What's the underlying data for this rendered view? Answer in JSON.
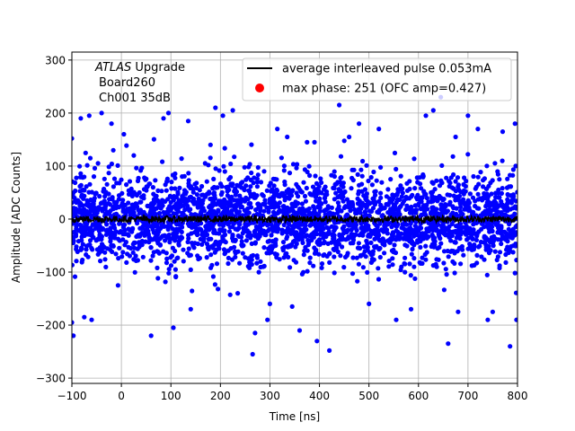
{
  "chart_data": {
    "type": "scatter",
    "title": "",
    "xlabel": "Time [ns]",
    "ylabel": "Amplitude [ADC Counts]",
    "xlim": [
      -100,
      800
    ],
    "ylim": [
      -310,
      315
    ],
    "xticks": [
      -100,
      0,
      100,
      200,
      300,
      400,
      500,
      600,
      700,
      800
    ],
    "yticks": [
      -300,
      -200,
      -100,
      0,
      100,
      200,
      300
    ],
    "xtick_labels": [
      "−100",
      "0",
      "100",
      "200",
      "300",
      "400",
      "500",
      "600",
      "700",
      "800"
    ],
    "ytick_labels": [
      "−300",
      "−200",
      "−100",
      "0",
      "100",
      "200",
      "300"
    ],
    "grid": true,
    "legend_position": "top-right",
    "annotation": {
      "italic": "ATLAS",
      "rest": " Upgrade",
      "line2": "Board260",
      "line3": "Ch001 35dB"
    },
    "series": [
      {
        "name": "",
        "kind": "scatter",
        "color": "#0000ff",
        "description_note": "dense noise band, approx ±90 ADC core with outliers",
        "core_range": [
          -90,
          90
        ],
        "outliers": [
          [
            -100,
            152
          ],
          [
            -100,
            -195
          ],
          [
            -97,
            -220
          ],
          [
            -82,
            190
          ],
          [
            -65,
            195
          ],
          [
            -40,
            200
          ],
          [
            -75,
            -185
          ],
          [
            -60,
            -190
          ],
          [
            -20,
            180
          ],
          [
            5,
            160
          ],
          [
            25,
            120
          ],
          [
            60,
            -220
          ],
          [
            85,
            190
          ],
          [
            95,
            200
          ],
          [
            105,
            -205
          ],
          [
            135,
            185
          ],
          [
            140,
            -170
          ],
          [
            180,
            140
          ],
          [
            190,
            210
          ],
          [
            205,
            195
          ],
          [
            225,
            205
          ],
          [
            235,
            -140
          ],
          [
            265,
            -255
          ],
          [
            270,
            -215
          ],
          [
            295,
            -190
          ],
          [
            300,
            -160
          ],
          [
            315,
            170
          ],
          [
            335,
            155
          ],
          [
            345,
            -165
          ],
          [
            360,
            -210
          ],
          [
            375,
            145
          ],
          [
            390,
            145
          ],
          [
            395,
            -230
          ],
          [
            420,
            -248
          ],
          [
            440,
            215
          ],
          [
            460,
            155
          ],
          [
            480,
            180
          ],
          [
            500,
            -160
          ],
          [
            520,
            170
          ],
          [
            555,
            -190
          ],
          [
            585,
            -170
          ],
          [
            615,
            195
          ],
          [
            630,
            205
          ],
          [
            645,
            230
          ],
          [
            660,
            -235
          ],
          [
            675,
            155
          ],
          [
            680,
            -175
          ],
          [
            700,
            195
          ],
          [
            720,
            170
          ],
          [
            740,
            -190
          ],
          [
            750,
            -175
          ],
          [
            770,
            165
          ],
          [
            785,
            -240
          ],
          [
            795,
            180
          ],
          [
            798,
            -190
          ]
        ]
      },
      {
        "name": "average interleaved pulse 0.053mA",
        "kind": "line",
        "color": "#000000",
        "level": 0,
        "noise_amplitude": 6
      },
      {
        "name": "max phase: 251 (OFC amp=0.427)",
        "kind": "marker",
        "color": "#ff0000"
      }
    ]
  }
}
